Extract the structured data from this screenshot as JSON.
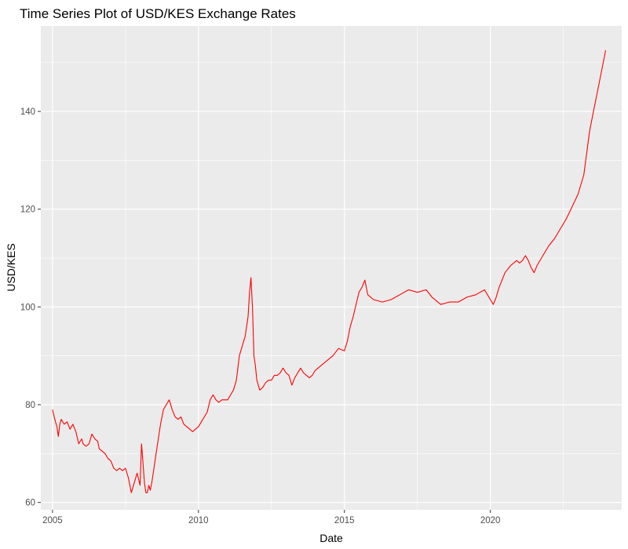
{
  "chart_data": {
    "type": "line",
    "title": "Time Series Plot of USD/KES Exchange Rates",
    "xlabel": "Date",
    "ylabel": "USD/KES",
    "xlim": [
      2004.6,
      2024.5
    ],
    "ylim": [
      58.5,
      157.5
    ],
    "x_ticks": [
      {
        "value": 2005,
        "label": "2005"
      },
      {
        "value": 2010,
        "label": "2010"
      },
      {
        "value": 2015,
        "label": "2015"
      },
      {
        "value": 2020,
        "label": "2020"
      }
    ],
    "y_ticks": [
      {
        "value": 60,
        "label": "60"
      },
      {
        "value": 80,
        "label": "80"
      },
      {
        "value": 100,
        "label": "100"
      },
      {
        "value": 120,
        "label": "120"
      },
      {
        "value": 140,
        "label": "140"
      }
    ],
    "grid": true,
    "legend": "none",
    "colors": {
      "line": "#ff0000",
      "panel": "#ebebeb",
      "grid": "#ffffff"
    },
    "series": [
      {
        "x": [
          2005.0,
          2005.08,
          2005.15,
          2005.2,
          2005.25,
          2005.3,
          2005.4,
          2005.5,
          2005.6,
          2005.7,
          2005.8,
          2005.9,
          2006.0,
          2006.05,
          2006.15,
          2006.25,
          2006.35,
          2006.45,
          2006.55,
          2006.6,
          2006.7,
          2006.8,
          2006.9,
          2007.0,
          2007.1,
          2007.2,
          2007.3,
          2007.4,
          2007.5,
          2007.6,
          2007.7,
          2007.8,
          2007.9,
          2008.0,
          2008.05,
          2008.1,
          2008.15,
          2008.2,
          2008.25,
          2008.3,
          2008.35,
          2008.4,
          2008.45,
          2008.5,
          2008.6,
          2008.7,
          2008.8,
          2008.9,
          2009.0,
          2009.1,
          2009.2,
          2009.3,
          2009.4,
          2009.5,
          2009.6,
          2009.7,
          2009.8,
          2009.9,
          2010.0,
          2010.1,
          2010.2,
          2010.3,
          2010.4,
          2010.5,
          2010.6,
          2010.7,
          2010.8,
          2010.9,
          2011.0,
          2011.1,
          2011.2,
          2011.3,
          2011.4,
          2011.5,
          2011.6,
          2011.7,
          2011.75,
          2011.8,
          2011.85,
          2011.9,
          2011.95,
          2012.0,
          2012.1,
          2012.2,
          2012.3,
          2012.4,
          2012.5,
          2012.6,
          2012.7,
          2012.8,
          2012.9,
          2013.0,
          2013.1,
          2013.2,
          2013.3,
          2013.4,
          2013.5,
          2013.6,
          2013.7,
          2013.8,
          2013.9,
          2014.0,
          2014.2,
          2014.4,
          2014.6,
          2014.8,
          2015.0,
          2015.1,
          2015.2,
          2015.3,
          2015.4,
          2015.5,
          2015.6,
          2015.7,
          2015.8,
          2015.9,
          2016.0,
          2016.3,
          2016.6,
          2016.9,
          2017.2,
          2017.5,
          2017.8,
          2018.0,
          2018.3,
          2018.6,
          2018.9,
          2019.2,
          2019.5,
          2019.8,
          2020.0,
          2020.1,
          2020.2,
          2020.3,
          2020.5,
          2020.7,
          2020.9,
          2021.0,
          2021.1,
          2021.2,
          2021.3,
          2021.4,
          2021.5,
          2021.6,
          2021.8,
          2022.0,
          2022.2,
          2022.4,
          2022.6,
          2022.8,
          2023.0,
          2023.2,
          2023.4,
          2023.6,
          2023.8,
          2023.95
        ],
        "y": [
          79.0,
          77.0,
          75.5,
          73.5,
          76.0,
          77.0,
          76.0,
          76.5,
          75.0,
          76.0,
          74.5,
          72.0,
          73.0,
          72.0,
          71.5,
          72.0,
          74.0,
          73.0,
          72.5,
          71.0,
          70.5,
          70.0,
          69.0,
          68.5,
          67.0,
          66.5,
          67.0,
          66.5,
          67.0,
          65.0,
          62.0,
          64.0,
          66.0,
          63.5,
          72.0,
          68.0,
          64.0,
          62.0,
          62.0,
          63.5,
          62.5,
          64.0,
          66.0,
          68.0,
          72.0,
          76.0,
          79.0,
          80.0,
          81.0,
          79.0,
          77.5,
          77.0,
          77.5,
          76.0,
          75.5,
          75.0,
          74.5,
          75.0,
          75.5,
          76.5,
          77.5,
          78.5,
          81.0,
          82.0,
          81.0,
          80.5,
          81.0,
          81.0,
          81.0,
          82.0,
          83.0,
          85.0,
          90.0,
          92.0,
          94.0,
          98.0,
          103.0,
          106.0,
          100.0,
          90.0,
          88.0,
          85.0,
          83.0,
          83.5,
          84.5,
          85.0,
          85.0,
          86.0,
          86.0,
          86.5,
          87.5,
          86.5,
          86.0,
          84.0,
          85.5,
          86.5,
          87.5,
          86.5,
          86.0,
          85.5,
          86.0,
          87.0,
          88.0,
          89.0,
          90.0,
          91.5,
          91.0,
          93.0,
          96.0,
          98.0,
          100.5,
          103.0,
          104.0,
          105.5,
          102.5,
          102.0,
          101.5,
          101.0,
          101.5,
          102.5,
          103.5,
          103.0,
          103.5,
          102.0,
          100.5,
          101.0,
          101.0,
          102.0,
          102.5,
          103.5,
          101.5,
          100.5,
          102.0,
          104.0,
          107.0,
          108.5,
          109.5,
          109.0,
          109.5,
          110.5,
          109.5,
          108.0,
          107.0,
          108.5,
          110.5,
          112.5,
          114.0,
          116.0,
          118.0,
          120.5,
          123.0,
          127.0,
          136.0,
          142.0,
          148.0,
          152.5
        ]
      }
    ]
  }
}
